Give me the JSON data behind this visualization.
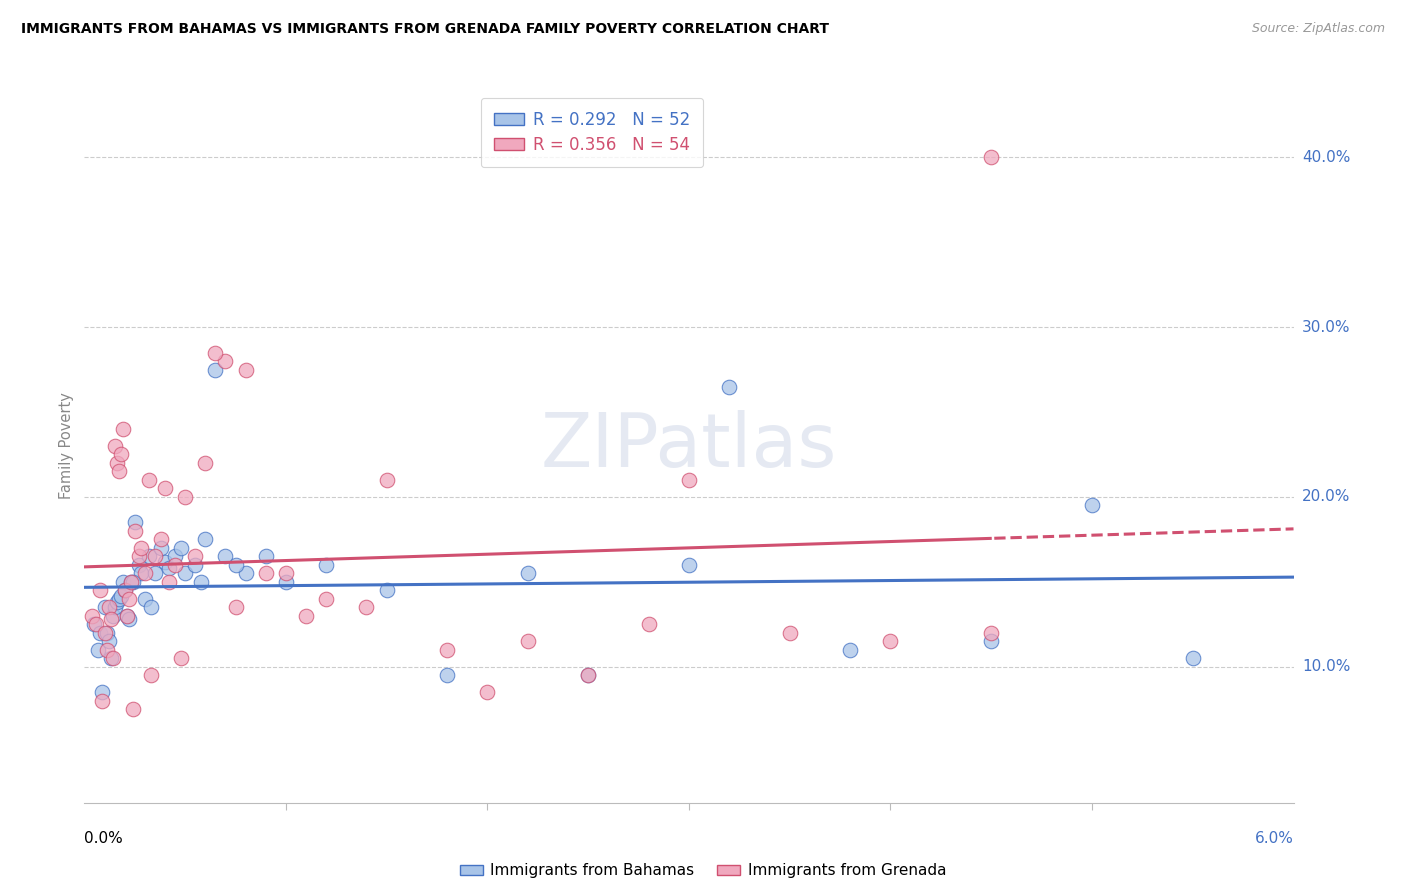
{
  "title": "IMMIGRANTS FROM BAHAMAS VS IMMIGRANTS FROM GRENADA FAMILY POVERTY CORRELATION CHART",
  "source": "Source: ZipAtlas.com",
  "ylabel": "Family Poverty",
  "series1_label": "Immigrants from Bahamas",
  "series2_label": "Immigrants from Grenada",
  "series1_facecolor": "#a8c4e8",
  "series2_facecolor": "#f0a8be",
  "series1_edgecolor": "#4472c4",
  "series2_edgecolor": "#d05070",
  "line1_color": "#4472c4",
  "line2_color": "#d05070",
  "legend1": "R = 0.292   N = 52",
  "legend2": "R = 0.356   N = 54",
  "xlim": [
    0.0,
    6.0
  ],
  "ylim": [
    2.0,
    44.0
  ],
  "yticks": [
    10,
    20,
    30,
    40
  ],
  "ytick_labels": [
    "10.0%",
    "20.0%",
    "30.0%",
    "40.0%"
  ],
  "watermark": "ZIPatlas",
  "bahamas_x": [
    0.05,
    0.07,
    0.08,
    0.1,
    0.11,
    0.12,
    0.13,
    0.14,
    0.15,
    0.16,
    0.17,
    0.18,
    0.19,
    0.2,
    0.21,
    0.22,
    0.23,
    0.25,
    0.27,
    0.28,
    0.3,
    0.32,
    0.35,
    0.38,
    0.4,
    0.42,
    0.45,
    0.48,
    0.5,
    0.55,
    0.6,
    0.65,
    0.7,
    0.8,
    1.0,
    1.2,
    1.5,
    1.8,
    2.2,
    2.5,
    3.2,
    3.8,
    4.5,
    5.0,
    5.5,
    3.0,
    0.09,
    0.24,
    0.33,
    0.58,
    0.75,
    0.9
  ],
  "bahamas_y": [
    12.5,
    11.0,
    12.0,
    13.5,
    12.0,
    11.5,
    10.5,
    13.0,
    13.5,
    13.8,
    14.0,
    14.2,
    15.0,
    14.5,
    13.0,
    12.8,
    15.0,
    18.5,
    16.0,
    15.5,
    14.0,
    16.5,
    15.5,
    17.0,
    16.2,
    15.8,
    16.5,
    17.0,
    15.5,
    16.0,
    17.5,
    27.5,
    16.5,
    15.5,
    15.0,
    16.0,
    14.5,
    9.5,
    15.5,
    9.5,
    26.5,
    11.0,
    11.5,
    19.5,
    10.5,
    16.0,
    8.5,
    15.0,
    13.5,
    15.0,
    16.0,
    16.5
  ],
  "grenada_x": [
    0.04,
    0.06,
    0.08,
    0.1,
    0.11,
    0.12,
    0.13,
    0.14,
    0.15,
    0.16,
    0.17,
    0.18,
    0.19,
    0.2,
    0.21,
    0.22,
    0.23,
    0.25,
    0.27,
    0.28,
    0.3,
    0.32,
    0.35,
    0.38,
    0.4,
    0.42,
    0.45,
    0.5,
    0.55,
    0.6,
    0.7,
    0.8,
    0.9,
    1.0,
    1.2,
    1.5,
    1.8,
    2.0,
    2.5,
    3.0,
    3.5,
    4.0,
    4.5,
    0.09,
    0.24,
    0.33,
    0.48,
    0.65,
    0.75,
    1.1,
    1.4,
    2.2,
    2.8,
    4.5
  ],
  "grenada_y": [
    13.0,
    12.5,
    14.5,
    12.0,
    11.0,
    13.5,
    12.8,
    10.5,
    23.0,
    22.0,
    21.5,
    22.5,
    24.0,
    14.5,
    13.0,
    14.0,
    15.0,
    18.0,
    16.5,
    17.0,
    15.5,
    21.0,
    16.5,
    17.5,
    20.5,
    15.0,
    16.0,
    20.0,
    16.5,
    22.0,
    28.0,
    27.5,
    15.5,
    15.5,
    14.0,
    21.0,
    11.0,
    8.5,
    9.5,
    21.0,
    12.0,
    11.5,
    12.0,
    8.0,
    7.5,
    9.5,
    10.5,
    28.5,
    13.5,
    13.0,
    13.5,
    11.5,
    12.5,
    40.0
  ]
}
